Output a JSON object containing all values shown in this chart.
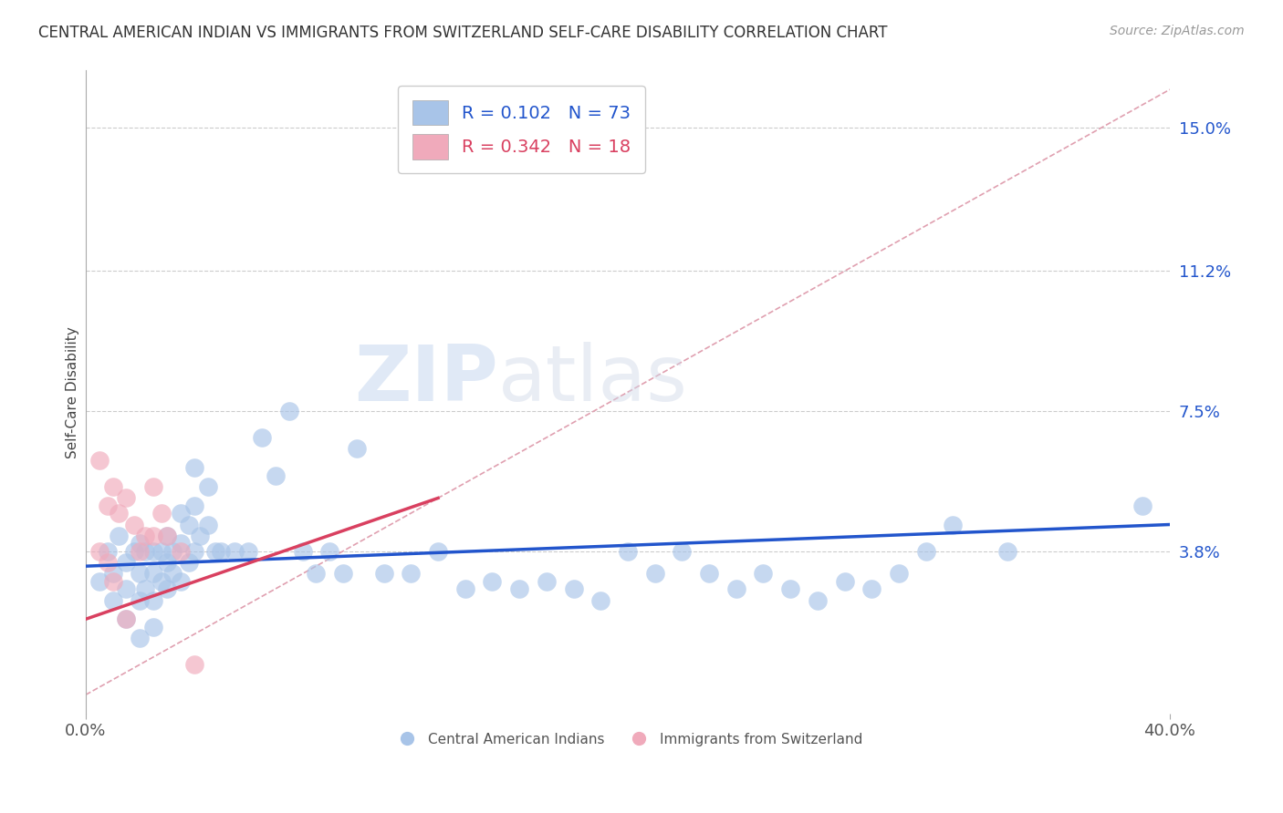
{
  "title": "CENTRAL AMERICAN INDIAN VS IMMIGRANTS FROM SWITZERLAND SELF-CARE DISABILITY CORRELATION CHART",
  "source": "Source: ZipAtlas.com",
  "ylabel": "Self-Care Disability",
  "xlim": [
    0.0,
    0.4
  ],
  "ylim": [
    -0.005,
    0.165
  ],
  "yticks": [
    0.038,
    0.075,
    0.112,
    0.15
  ],
  "ytick_labels": [
    "3.8%",
    "7.5%",
    "11.2%",
    "15.0%"
  ],
  "xticks": [
    0.0,
    0.4
  ],
  "xtick_labels": [
    "0.0%",
    "40.0%"
  ],
  "blue_R": 0.102,
  "blue_N": 73,
  "pink_R": 0.342,
  "pink_N": 18,
  "blue_color": "#a8c4e8",
  "pink_color": "#f0aabb",
  "blue_line_color": "#2255cc",
  "pink_line_color": "#d94060",
  "ref_line_color": "#e0a0b0",
  "background_color": "#ffffff",
  "title_fontsize": 12,
  "label_fontsize": 11,
  "tick_fontsize": 13,
  "legend_fontsize": 14,
  "blue_scatter_x": [
    0.005,
    0.008,
    0.01,
    0.01,
    0.012,
    0.015,
    0.015,
    0.015,
    0.018,
    0.02,
    0.02,
    0.02,
    0.02,
    0.022,
    0.022,
    0.025,
    0.025,
    0.025,
    0.025,
    0.028,
    0.028,
    0.03,
    0.03,
    0.03,
    0.032,
    0.032,
    0.035,
    0.035,
    0.035,
    0.038,
    0.038,
    0.04,
    0.04,
    0.04,
    0.042,
    0.045,
    0.045,
    0.048,
    0.05,
    0.055,
    0.06,
    0.065,
    0.07,
    0.075,
    0.08,
    0.085,
    0.09,
    0.095,
    0.1,
    0.11,
    0.12,
    0.13,
    0.14,
    0.15,
    0.16,
    0.17,
    0.18,
    0.19,
    0.2,
    0.21,
    0.22,
    0.23,
    0.24,
    0.25,
    0.26,
    0.27,
    0.28,
    0.29,
    0.3,
    0.31,
    0.32,
    0.34,
    0.39
  ],
  "blue_scatter_y": [
    0.03,
    0.038,
    0.032,
    0.025,
    0.042,
    0.035,
    0.028,
    0.02,
    0.038,
    0.04,
    0.032,
    0.025,
    0.015,
    0.038,
    0.028,
    0.038,
    0.032,
    0.025,
    0.018,
    0.038,
    0.03,
    0.042,
    0.035,
    0.028,
    0.038,
    0.032,
    0.048,
    0.04,
    0.03,
    0.045,
    0.035,
    0.06,
    0.05,
    0.038,
    0.042,
    0.055,
    0.045,
    0.038,
    0.038,
    0.038,
    0.038,
    0.068,
    0.058,
    0.075,
    0.038,
    0.032,
    0.038,
    0.032,
    0.065,
    0.032,
    0.032,
    0.038,
    0.028,
    0.03,
    0.028,
    0.03,
    0.028,
    0.025,
    0.038,
    0.032,
    0.038,
    0.032,
    0.028,
    0.032,
    0.028,
    0.025,
    0.03,
    0.028,
    0.032,
    0.038,
    0.045,
    0.038,
    0.05
  ],
  "pink_scatter_x": [
    0.005,
    0.005,
    0.008,
    0.008,
    0.01,
    0.01,
    0.012,
    0.015,
    0.015,
    0.018,
    0.02,
    0.022,
    0.025,
    0.025,
    0.028,
    0.03,
    0.035,
    0.04
  ],
  "pink_scatter_y": [
    0.062,
    0.038,
    0.05,
    0.035,
    0.055,
    0.03,
    0.048,
    0.052,
    0.02,
    0.045,
    0.038,
    0.042,
    0.055,
    0.042,
    0.048,
    0.042,
    0.038,
    0.008
  ],
  "blue_trend_x": [
    0.0,
    0.4
  ],
  "blue_trend_y": [
    0.034,
    0.045
  ],
  "pink_trend_x": [
    0.0,
    0.13
  ],
  "pink_trend_y": [
    0.02,
    0.052
  ],
  "ref_line_x": [
    0.0,
    0.4
  ],
  "ref_line_y": [
    0.0,
    0.16
  ]
}
